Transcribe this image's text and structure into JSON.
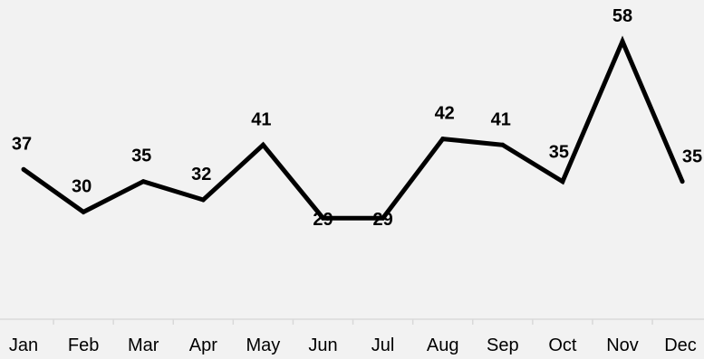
{
  "colors": {
    "background": "#f2f2f2",
    "line": "#000000",
    "axis": "#d9d9d9",
    "text": "#000000"
  },
  "chart_data": {
    "type": "line",
    "title": "",
    "xlabel": "",
    "ylabel": "",
    "categories": [
      "Jan",
      "Feb",
      "Mar",
      "Apr",
      "May",
      "Jun",
      "Jul",
      "Aug",
      "Sep",
      "Oct",
      "Nov",
      "Dec"
    ],
    "series": [
      {
        "values": [
          37,
          30,
          35,
          32,
          41,
          29,
          29,
          42,
          41,
          35,
          58,
          35
        ],
        "data_labels": [
          "37",
          "30",
          "35",
          "32",
          "41",
          "29",
          "29",
          "42",
          "41",
          "35",
          "58",
          "35"
        ]
      }
    ],
    "ylim": [
      10,
      62
    ],
    "grid": false,
    "legend": "none"
  }
}
